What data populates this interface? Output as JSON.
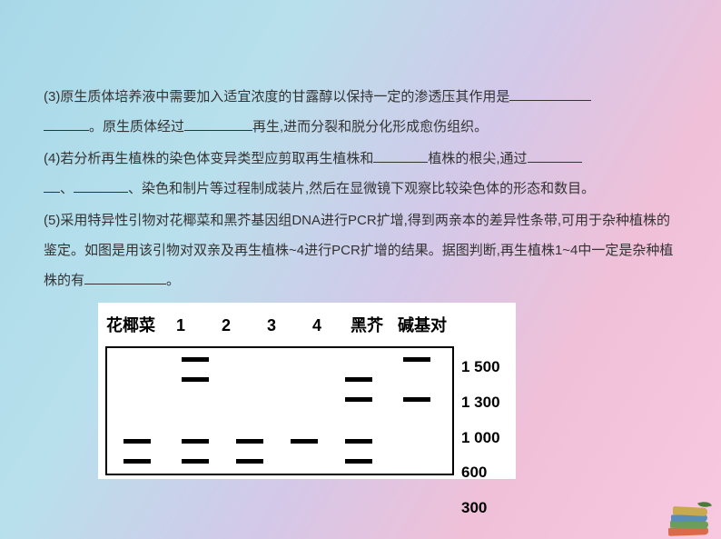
{
  "content": {
    "q3_a": "(3)原生质体培养液中需要加入适宜浓度的甘露醇以保持一定的渗透压其作用是",
    "q3_b": "。原生质体经过",
    "q3_c": "再生,进而分裂和脱分化形成愈伤组织。",
    "q4_a": "(4)若分析再生植株的染色体变异类型应剪取再生植株和",
    "q4_b": "植株的根尖,通过",
    "q4_c": "、",
    "q4_d": "、染色和制片等过程制成装片,然后在显微镜下观察比较染色体的形态和数目。",
    "q5_a": "(5)采用特异性引物对花椰菜和黑芥基因组DNA进行PCR扩增,得到两亲本的差异性条带,可用于杂种植株的鉴定。如图是用该引物对双亲及再生植株~4进行PCR扩增的结果。据图判断,再生植株1~4中一定是杂种植株的有",
    "q5_b": "。"
  },
  "diagram": {
    "lanes": [
      "花椰菜",
      "1",
      "2",
      "3",
      "4",
      "黑芥",
      "碱基对"
    ],
    "bp_labels": [
      "1 500",
      "1 300",
      "1 000",
      "600",
      "300"
    ],
    "lane_x": {
      "cauliflower": 18,
      "l1": 82,
      "l2": 142,
      "l3": 202,
      "l4": 262,
      "mustard": 326
    },
    "row_y": {
      "r1500": 10,
      "r1300": 32,
      "r1000": 54,
      "r600": 100,
      "r300": 122
    },
    "bands": [
      {
        "lane": "l1",
        "row": "r1500"
      },
      {
        "lane": "mustard",
        "row": "r1500"
      },
      {
        "lane": "l1",
        "row": "r1300"
      },
      {
        "lane": "l4",
        "row": "r1300"
      },
      {
        "lane": "l4",
        "row": "r1000"
      },
      {
        "lane": "mustard",
        "row": "r1000"
      },
      {
        "lane": "cauliflower",
        "row": "r600"
      },
      {
        "lane": "l1",
        "row": "r600"
      },
      {
        "lane": "l2",
        "row": "r600"
      },
      {
        "lane": "l3",
        "row": "r600"
      },
      {
        "lane": "l4",
        "row": "r600"
      },
      {
        "lane": "cauliflower",
        "row": "r300"
      },
      {
        "lane": "l1",
        "row": "r300"
      },
      {
        "lane": "l2",
        "row": "r300"
      },
      {
        "lane": "l4",
        "row": "r300"
      }
    ],
    "colors": {
      "band": "#000000",
      "box_border": "#000000",
      "bg": "#ffffff"
    }
  }
}
